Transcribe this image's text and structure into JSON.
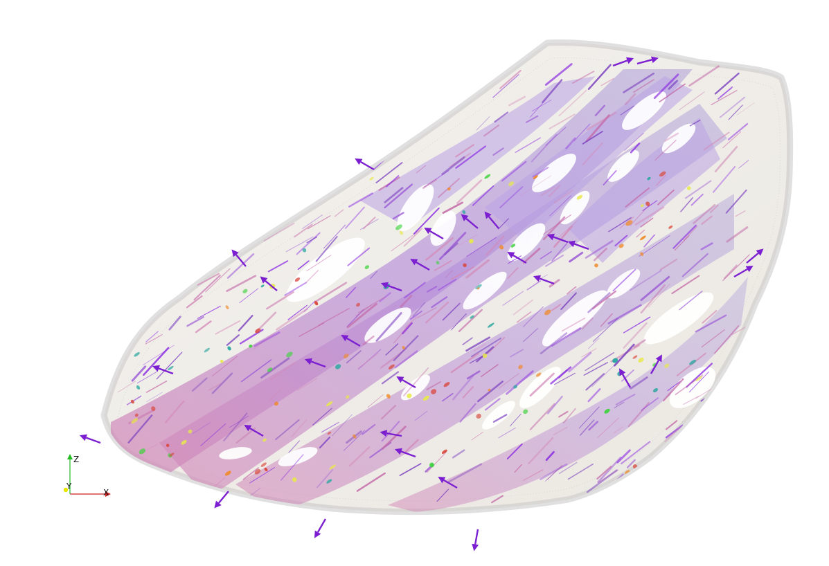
{
  "scene": {
    "background": "#ffffff",
    "colors": {
      "shell_fill": "#f1efe9",
      "shell_edge": "#c9c6c6",
      "fiber_purple": "#8a2be2",
      "fiber_violet": "#9b59d6",
      "fiber_pink": "#d48ab8",
      "fiber_lavender": "#b9a3e3",
      "accent_green": "#3fd23f",
      "accent_yellow": "#e8e84a",
      "accent_orange": "#f08a2a",
      "accent_red": "#d9453a",
      "accent_teal": "#2aa7a0"
    }
  },
  "axes": {
    "z_label": "Z",
    "y_label": "Y",
    "x_label": "X",
    "z_color": "#22bb22",
    "y_color": "#e6e600",
    "x_color": "#cc2222"
  }
}
